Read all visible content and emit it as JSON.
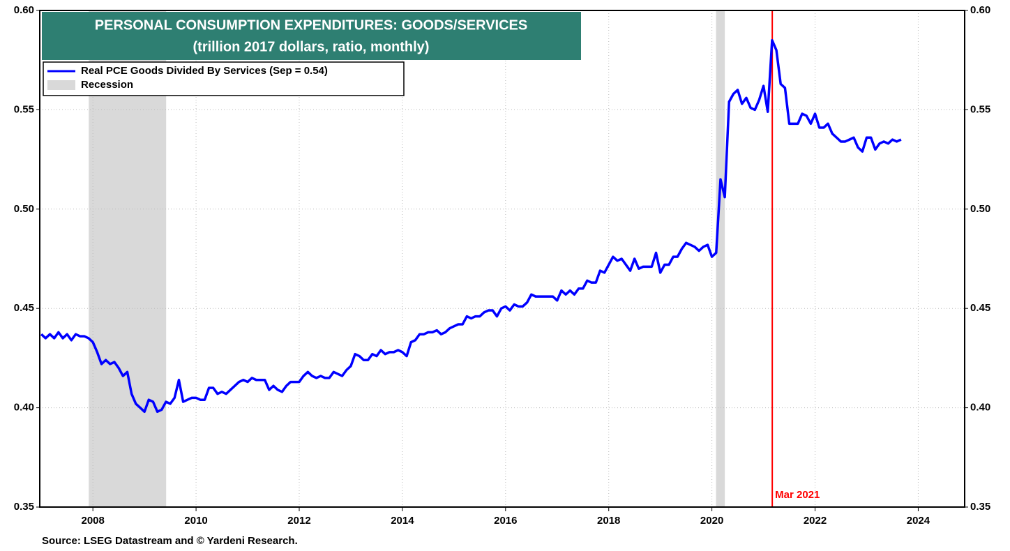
{
  "chart_data": {
    "type": "line",
    "title": "PERSONAL CONSUMPTION EXPENDITURES: GOODS/SERVICES",
    "subtitle": "(trillion 2017 dollars, ratio, monthly)",
    "source": "Source: LSEG Datastream and © Yardeni Research.",
    "xlim": [
      2006.97,
      2024.9
    ],
    "xticks": [
      2008,
      2010,
      2012,
      2014,
      2016,
      2018,
      2020,
      2022,
      2024
    ],
    "ylim": [
      0.35,
      0.6
    ],
    "yticks": [
      0.35,
      {
        "value": 0.4,
        "label": "0.40"
      },
      0.45,
      {
        "value": 0.5,
        "label": "0.50"
      },
      0.55,
      {
        "value": 0.6,
        "label": "0.60"
      }
    ],
    "y2lim": [
      0.35,
      0.6
    ],
    "y2ticks": [
      0.35,
      {
        "value": 0.4,
        "label": "0.40"
      },
      0.45,
      {
        "value": 0.5,
        "label": "0.50"
      },
      0.55,
      {
        "value": 0.6,
        "label": "0.60"
      }
    ],
    "grid": true,
    "legend": "upper left",
    "recession_label": "Recession",
    "recession_color": "#d9d9d9",
    "recessions": [
      [
        2007.92,
        2009.42
      ],
      [
        2020.08,
        2020.25
      ]
    ],
    "annotation": {
      "text": "Mar 2021",
      "x": 2021.17,
      "color": "#ff0000"
    },
    "x": [
      2007.0,
      2007.083,
      2007.167,
      2007.25,
      2007.333,
      2007.417,
      2007.5,
      2007.583,
      2007.667,
      2007.75,
      2007.833,
      2007.917,
      2008.0,
      2008.083,
      2008.167,
      2008.25,
      2008.333,
      2008.417,
      2008.5,
      2008.583,
      2008.667,
      2008.75,
      2008.833,
      2008.917,
      2009.0,
      2009.083,
      2009.167,
      2009.25,
      2009.333,
      2009.417,
      2009.5,
      2009.583,
      2009.667,
      2009.75,
      2009.833,
      2009.917,
      2010.0,
      2010.083,
      2010.167,
      2010.25,
      2010.333,
      2010.417,
      2010.5,
      2010.583,
      2010.667,
      2010.75,
      2010.833,
      2010.917,
      2011.0,
      2011.083,
      2011.167,
      2011.25,
      2011.333,
      2011.417,
      2011.5,
      2011.583,
      2011.667,
      2011.75,
      2011.833,
      2011.917,
      2012.0,
      2012.083,
      2012.167,
      2012.25,
      2012.333,
      2012.417,
      2012.5,
      2012.583,
      2012.667,
      2012.75,
      2012.833,
      2012.917,
      2013.0,
      2013.083,
      2013.167,
      2013.25,
      2013.333,
      2013.417,
      2013.5,
      2013.583,
      2013.667,
      2013.75,
      2013.833,
      2013.917,
      2014.0,
      2014.083,
      2014.167,
      2014.25,
      2014.333,
      2014.417,
      2014.5,
      2014.583,
      2014.667,
      2014.75,
      2014.833,
      2014.917,
      2015.0,
      2015.083,
      2015.167,
      2015.25,
      2015.333,
      2015.417,
      2015.5,
      2015.583,
      2015.667,
      2015.75,
      2015.833,
      2015.917,
      2016.0,
      2016.083,
      2016.167,
      2016.25,
      2016.333,
      2016.417,
      2016.5,
      2016.583,
      2016.667,
      2016.75,
      2016.833,
      2016.917,
      2017.0,
      2017.083,
      2017.167,
      2017.25,
      2017.333,
      2017.417,
      2017.5,
      2017.583,
      2017.667,
      2017.75,
      2017.833,
      2017.917,
      2018.0,
      2018.083,
      2018.167,
      2018.25,
      2018.333,
      2018.417,
      2018.5,
      2018.583,
      2018.667,
      2018.75,
      2018.833,
      2018.917,
      2019.0,
      2019.083,
      2019.167,
      2019.25,
      2019.333,
      2019.417,
      2019.5,
      2019.583,
      2019.667,
      2019.75,
      2019.833,
      2019.917,
      2020.0,
      2020.083,
      2020.167,
      2020.25,
      2020.333,
      2020.417,
      2020.5,
      2020.583,
      2020.667,
      2020.75,
      2020.833,
      2020.917,
      2021.0,
      2021.083,
      2021.167,
      2021.25,
      2021.333,
      2021.417,
      2021.5,
      2021.583,
      2021.667,
      2021.75,
      2021.833,
      2021.917,
      2022.0,
      2022.083,
      2022.167,
      2022.25,
      2022.333,
      2022.417,
      2022.5,
      2022.583,
      2022.667,
      2022.75,
      2022.833,
      2022.917,
      2023.0,
      2023.083,
      2023.167,
      2023.25,
      2023.333,
      2023.417,
      2023.5,
      2023.583,
      2023.667
    ],
    "series": [
      {
        "name": "Real PCE Goods Divided By Services  (Sep = 0.54)",
        "color": "#0000ff",
        "values": [
          0.437,
          0.435,
          0.437,
          0.435,
          0.438,
          0.435,
          0.437,
          0.434,
          0.437,
          0.436,
          0.436,
          0.435,
          0.433,
          0.428,
          0.422,
          0.424,
          0.422,
          0.423,
          0.42,
          0.416,
          0.418,
          0.407,
          0.402,
          0.4,
          0.398,
          0.404,
          0.403,
          0.398,
          0.399,
          0.403,
          0.402,
          0.405,
          0.414,
          0.403,
          0.404,
          0.405,
          0.405,
          0.404,
          0.404,
          0.41,
          0.41,
          0.407,
          0.408,
          0.407,
          0.409,
          0.411,
          0.413,
          0.414,
          0.413,
          0.415,
          0.414,
          0.414,
          0.414,
          0.409,
          0.411,
          0.409,
          0.408,
          0.411,
          0.413,
          0.413,
          0.413,
          0.416,
          0.418,
          0.416,
          0.415,
          0.416,
          0.415,
          0.415,
          0.418,
          0.417,
          0.416,
          0.419,
          0.421,
          0.427,
          0.426,
          0.424,
          0.424,
          0.427,
          0.426,
          0.429,
          0.427,
          0.428,
          0.428,
          0.429,
          0.428,
          0.426,
          0.433,
          0.434,
          0.437,
          0.437,
          0.438,
          0.438,
          0.439,
          0.437,
          0.438,
          0.44,
          0.441,
          0.442,
          0.442,
          0.446,
          0.445,
          0.446,
          0.446,
          0.448,
          0.449,
          0.449,
          0.446,
          0.45,
          0.451,
          0.449,
          0.452,
          0.451,
          0.451,
          0.453,
          0.457,
          0.456,
          0.456,
          0.456,
          0.456,
          0.456,
          0.454,
          0.459,
          0.457,
          0.459,
          0.457,
          0.46,
          0.46,
          0.464,
          0.463,
          0.463,
          0.469,
          0.468,
          0.472,
          0.476,
          0.474,
          0.475,
          0.472,
          0.469,
          0.475,
          0.47,
          0.471,
          0.471,
          0.471,
          0.478,
          0.468,
          0.472,
          0.472,
          0.476,
          0.476,
          0.48,
          0.483,
          0.482,
          0.481,
          0.479,
          0.481,
          0.482,
          0.476,
          0.478,
          0.515,
          0.506,
          0.554,
          0.558,
          0.56,
          0.553,
          0.556,
          0.551,
          0.55,
          0.555,
          0.562,
          0.549,
          0.585,
          0.58,
          0.563,
          0.561,
          0.543,
          0.543,
          0.543,
          0.548,
          0.547,
          0.543,
          0.548,
          0.541,
          0.541,
          0.543,
          0.538,
          0.536,
          0.534,
          0.534,
          0.535,
          0.536,
          0.531,
          0.529,
          0.536,
          0.536,
          0.53,
          0.533,
          0.534,
          0.533,
          0.535,
          0.534,
          0.535
        ]
      }
    ]
  }
}
